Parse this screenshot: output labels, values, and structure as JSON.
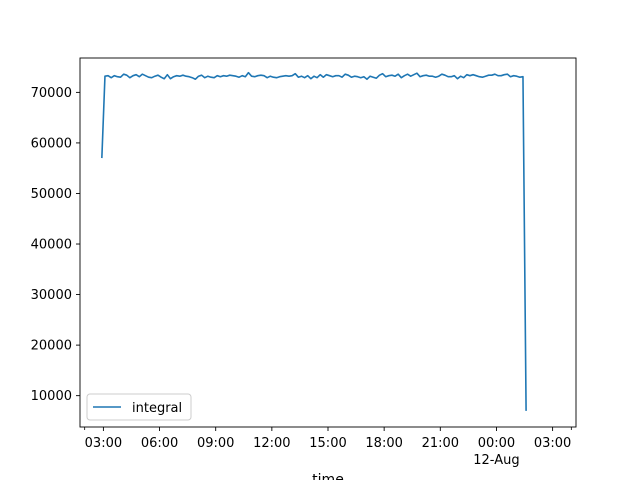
{
  "chart_data": {
    "type": "line",
    "xlabel": "time",
    "ylabel": "",
    "title": "",
    "legend": {
      "location": "lower-left",
      "entries": [
        "integral"
      ]
    },
    "x_range": [
      "2024-08-11T01:45",
      "2024-08-12T04:15"
    ],
    "ylim": [
      3800,
      76800
    ],
    "x_ticks": [
      {
        "t": "2024-08-11T03:00",
        "label": "03:00",
        "sublabel": ""
      },
      {
        "t": "2024-08-11T06:00",
        "label": "06:00",
        "sublabel": ""
      },
      {
        "t": "2024-08-11T09:00",
        "label": "09:00",
        "sublabel": ""
      },
      {
        "t": "2024-08-11T12:00",
        "label": "12:00",
        "sublabel": ""
      },
      {
        "t": "2024-08-11T15:00",
        "label": "15:00",
        "sublabel": ""
      },
      {
        "t": "2024-08-11T18:00",
        "label": "18:00",
        "sublabel": ""
      },
      {
        "t": "2024-08-11T21:00",
        "label": "21:00",
        "sublabel": ""
      },
      {
        "t": "2024-08-12T00:00",
        "label": "00:00",
        "sublabel": "12-Aug"
      },
      {
        "t": "2024-08-12T03:00",
        "label": "03:00",
        "sublabel": ""
      }
    ],
    "y_ticks": [
      10000,
      20000,
      30000,
      40000,
      50000,
      60000,
      70000
    ],
    "series": [
      {
        "name": "integral",
        "color": "#1f77b4",
        "start": "2024-08-11T02:55",
        "step_minutes": 10,
        "values": [
          57000,
          73200,
          73300,
          72900,
          73300,
          73100,
          73000,
          73600,
          73400,
          72900,
          73300,
          73500,
          73100,
          73600,
          73300,
          73000,
          72900,
          73200,
          73400,
          73000,
          72700,
          73500,
          72700,
          73100,
          73300,
          73200,
          73400,
          73200,
          73100,
          72900,
          72600,
          73200,
          73400,
          72900,
          73200,
          73000,
          72900,
          73300,
          73100,
          73300,
          73200,
          73400,
          73300,
          73200,
          73000,
          73300,
          73100,
          73900,
          73200,
          73100,
          73300,
          73400,
          73300,
          72900,
          73200,
          73000,
          72900,
          73100,
          73200,
          73300,
          73200,
          73300,
          73700,
          73000,
          73200,
          72900,
          73300,
          72700,
          73200,
          72900,
          73500,
          73000,
          73500,
          73300,
          73100,
          73300,
          73300,
          73000,
          73600,
          73400,
          73000,
          73200,
          73100,
          72900,
          73100,
          72600,
          73200,
          73000,
          72800,
          73400,
          73700,
          73100,
          73300,
          73400,
          73200,
          73600,
          72900,
          73300,
          73600,
          73200,
          73500,
          73800,
          73100,
          73300,
          73400,
          73200,
          73200,
          73000,
          73200,
          73600,
          73400,
          73100,
          73100,
          73300,
          72700,
          73200,
          72900,
          73500,
          73300,
          73500,
          73300,
          73100,
          73000,
          73200,
          73400,
          73400,
          73600,
          73300,
          73300,
          73500,
          73600,
          73100,
          73300,
          73200,
          73000,
          73100,
          7000
        ]
      }
    ]
  }
}
